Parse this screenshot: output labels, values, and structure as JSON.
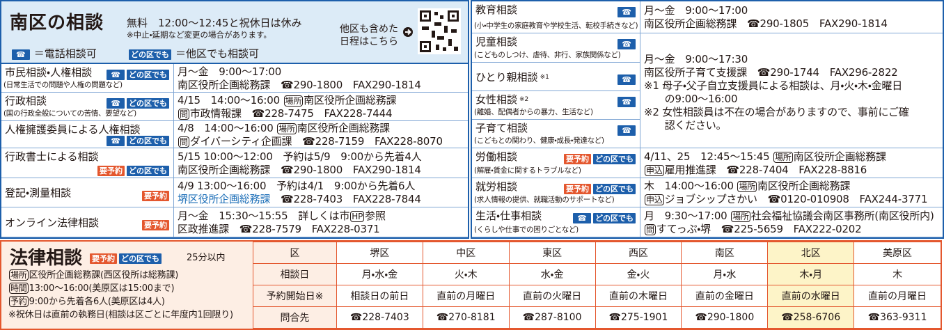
{
  "header": {
    "title": "南区の相談",
    "free_note": "無料　12:00～12:45と祝休日は休み",
    "change_note": "※中止・延期など変更の場合があります。",
    "schedule_link": [
      "他区も含めた",
      "日程はこちら"
    ],
    "legend": [
      {
        "badge": "☎",
        "text": "＝電話相談可"
      },
      {
        "badge": "どの区でも",
        "text": "＝他区でも相談可"
      }
    ]
  },
  "left": [
    {
      "name": "市民相談・人権相談",
      "sub": "(日常生活での問題や人権の問題など)",
      "badges": [
        "☎",
        "どの区でも"
      ],
      "info": [
        [
          "月～金　9:00～17:00"
        ],
        [
          "南区役所企画総務課　☎290-1800　FAX290-1814"
        ]
      ]
    },
    {
      "name": "行政相談",
      "sub": "(国の行政全般についての苦情、要望など)",
      "badges": [
        "☎",
        "どの区でも"
      ],
      "info": [
        [
          "4/15　14:00～16:00 ",
          {
            "tag": "場所"
          },
          "南区役所企画総務課"
        ],
        [
          {
            "tag": "問"
          },
          "市政情報課　☎228-7475　FAX228-7444"
        ]
      ]
    },
    {
      "name": "人権擁護委員による人権相談",
      "badges": [
        "☎",
        "どの区でも"
      ],
      "info": [
        [
          "4/8　14:00～16:00 ",
          {
            "tag": "場所"
          },
          "南区役所企画総務課"
        ],
        [
          {
            "tag": "問"
          },
          "ダイバーシティ企画課　☎228-7159　FAX228-8070"
        ]
      ]
    },
    {
      "name": "行政書士による相談",
      "badges": [
        "要予約",
        "どの区でも"
      ],
      "info": [
        [
          "5/15 10:00～12:00　予約は5/9　9:00から先着4人"
        ],
        [
          "南区役所企画総務課　☎290-1800　FAX290-1814"
        ]
      ]
    },
    {
      "name": "登記・測量相談",
      "badges": [
        "要予約"
      ],
      "info": [
        [
          "4/9 13:00～16:00　予約は4/1　9:00から先着6人"
        ],
        [
          {
            "text": "堺区役所企画総務課",
            "color": "#1d6fb8"
          },
          "　☎228-7403　FAX228-7844"
        ]
      ]
    },
    {
      "name": "オンライン法律相談",
      "badges": [
        "要予約"
      ],
      "info": [
        [
          "月～金　15:30～15:55　詳しくは市",
          {
            "tag": "HP"
          },
          "参照"
        ],
        [
          "区政推進課　☎228-7579　FAX228-0371"
        ]
      ]
    }
  ],
  "right": [
    {
      "name": "教育相談",
      "sub": "(小・中学生の家庭教育や学校生活、転校手続きなど)",
      "badges": [
        "☎"
      ],
      "info": [
        [
          "月～金　9:00～17:00"
        ],
        [
          "南区役所企画総務課　☎290-1805　FAX290-1814"
        ]
      ]
    },
    {
      "name": "労働相談",
      "sub": "(解雇・賃金に関するトラブルなど)",
      "badges": [
        "要予約",
        "どの区でも"
      ],
      "info": [
        [
          "4/11、25　12:45～15:45 ",
          {
            "tag": "場所"
          },
          "南区役所企画総務課"
        ],
        [
          {
            "tag": "申込"
          },
          "雇用推進課　☎228-7404　FAX228-8816"
        ]
      ]
    },
    {
      "name": "就労相談",
      "sub": "(求人情報の提供、就職活動のサポートなど)",
      "badges": [
        "要予約",
        "どの区でも"
      ],
      "info": [
        [
          "木　14:00～16:00 ",
          {
            "tag": "場所"
          },
          "南区役所企画総務課"
        ],
        [
          {
            "tag": "申込"
          },
          "ジョブシップさかい　☎0120-010908　FAX244-3771"
        ]
      ]
    },
    {
      "name": "生活・仕事相談",
      "sub": "(くらしや仕事での困りごとなど)",
      "badges": [
        "☎",
        "どの区でも"
      ],
      "info": [
        [
          "月　9:30～17:00 ",
          {
            "tag": "場所"
          },
          "社会福祉協議会南区事務所(南区役所内)"
        ],
        [
          {
            "tag": "問"
          },
          "すてっぷ・堺　☎225-5659　FAX222-0202"
        ]
      ]
    }
  ],
  "right_group": {
    "rows": [
      {
        "name": "児童相談",
        "sub": "(こどものしつけ、虐待、非行、家族関係など)",
        "badges": [
          "☎"
        ]
      },
      {
        "name": "ひとり親相談",
        "note": "※1",
        "badges": [
          "☎"
        ]
      },
      {
        "name": "女性相談",
        "note": "※2",
        "sub": "(離婚、配偶者からの暴力、生活など)",
        "badges": [
          "☎"
        ]
      },
      {
        "name": "子育て相談",
        "sub": "(こどもとの関わり、健康・成長・発達など)",
        "badges": [
          "☎"
        ]
      }
    ],
    "info": [
      [
        "月～金　9:00～17:30"
      ],
      [
        "南区役所子育て支援課　☎290-1744　FAX296-2822"
      ],
      [
        "※1 母子・父子自立支援員による相談は、月・火・木・金曜日"
      ],
      [
        "　　の9:00～16:00"
      ],
      [
        "※2 女性相談員は不在の場合がありますので、事前にご確"
      ],
      [
        "　　認ください。"
      ]
    ]
  },
  "law": {
    "title": "法律相談",
    "badges": [
      "要予約",
      "どの区でも"
    ],
    "limit": "25分以内",
    "lines": [
      [
        {
          "tag": "場所"
        },
        "区役所企画総務課(西区役所は総務課)"
      ],
      [
        {
          "tag": "時間"
        },
        "13:00～16:00(美原区は15:00まで)"
      ],
      [
        {
          "tag": "予約"
        },
        "9:00から先着各6人(美原区は4人)"
      ],
      [
        "※祝休日は直前の執務日(相談は区ごとに年度内1回限り)"
      ]
    ],
    "table": {
      "columns": [
        "区",
        "堺区",
        "中区",
        "東区",
        "西区",
        "南区",
        "北区",
        "美原区"
      ],
      "rows": [
        [
          "相談日",
          "月・水・金",
          "火・木",
          "水・金",
          "金・火",
          "月・水",
          "木・月",
          "木"
        ],
        [
          "予約開始日※",
          "相談日の前日",
          "直前の月曜日",
          "直前の火曜日",
          "直前の木曜日",
          "直前の金曜日",
          "直前の水曜日",
          "直前の月曜日"
        ],
        [
          "問合先",
          "☎228-7403",
          "☎270-8181",
          "☎287-8100",
          "☎275-1901",
          "☎290-1800",
          "☎258-6706",
          "☎363-9311"
        ]
      ]
    }
  }
}
